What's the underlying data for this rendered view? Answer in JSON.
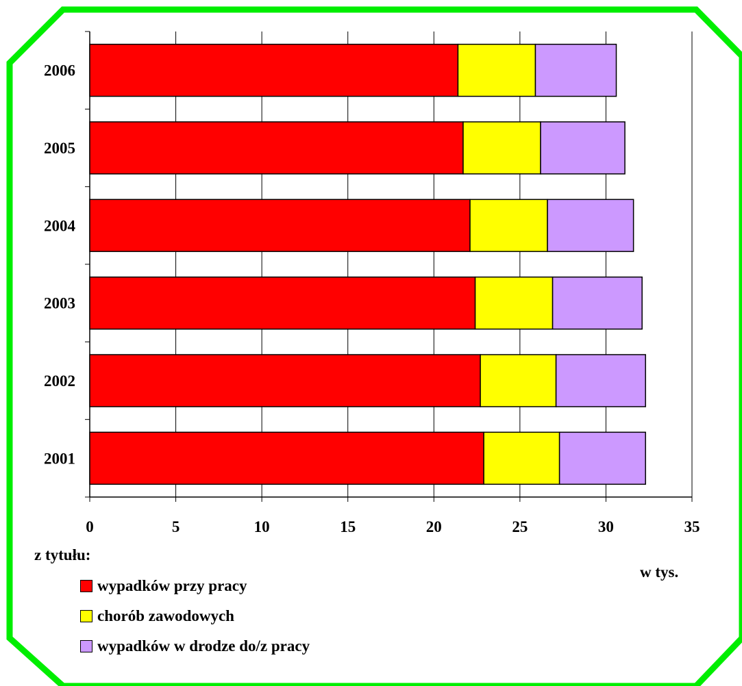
{
  "frame": {
    "color": "#00ee00"
  },
  "chart_data": {
    "type": "bar",
    "orientation": "horizontal",
    "stacked": true,
    "categories": [
      "2001",
      "2002",
      "2003",
      "2004",
      "2005",
      "2006"
    ],
    "series": [
      {
        "name": "wypadków przy pracy",
        "color": "#ff0000",
        "values": [
          22.9,
          22.7,
          22.4,
          22.1,
          21.7,
          21.4
        ]
      },
      {
        "name": "chorób zawodowych",
        "color": "#ffff00",
        "values": [
          4.4,
          4.4,
          4.5,
          4.5,
          4.5,
          4.5
        ]
      },
      {
        "name": "wypadków w drodze do/z pracy",
        "color": "#cc99ff",
        "values": [
          5.0,
          5.2,
          5.2,
          5.0,
          4.9,
          4.7
        ]
      }
    ],
    "xlim": [
      0,
      35
    ],
    "xticks": [
      0,
      5,
      10,
      15,
      20,
      25,
      30,
      35
    ],
    "xgrid": true,
    "unit_label": "w tys.",
    "legend_title": "z tytułu:",
    "legend_position": "bottom-left"
  }
}
